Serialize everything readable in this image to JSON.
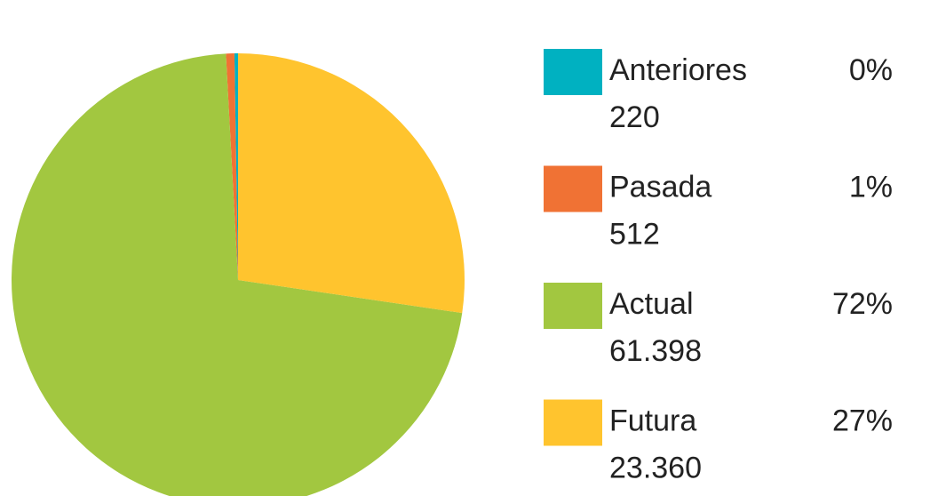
{
  "chart_data": {
    "type": "pie",
    "categories": [
      "Anteriores",
      "Pasada",
      "Actual",
      "Futura"
    ],
    "values": [
      220,
      512,
      61398,
      23360
    ],
    "value_labels": [
      "220",
      "512",
      "61.398",
      "23.360"
    ],
    "percent_labels": [
      "0%",
      "1%",
      "72%",
      "27%"
    ],
    "colors": [
      "#00b1c1",
      "#f07234",
      "#a2c740",
      "#ffc42e"
    ],
    "legend": "right"
  }
}
